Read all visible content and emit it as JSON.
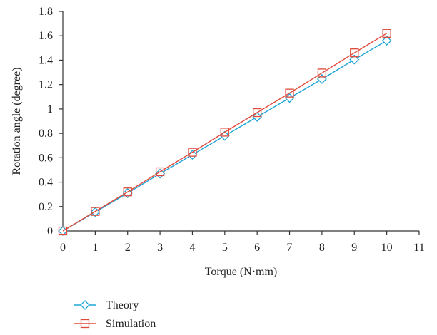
{
  "chart_data": {
    "type": "line",
    "xlabel": "Torque (N·mm)",
    "ylabel": "Rotation angle (degree)",
    "xlim": [
      0,
      11
    ],
    "ylim": [
      0,
      1.8
    ],
    "x_ticks": [
      "0",
      "1",
      "2",
      "3",
      "4",
      "5",
      "6",
      "7",
      "8",
      "9",
      "10",
      "11"
    ],
    "y_ticks": [
      "0",
      "0.2",
      "0.4",
      "0.6",
      "0.8",
      "1",
      "1.2",
      "1.4",
      "1.6",
      "1.8"
    ],
    "x_tick_values": [
      0,
      1,
      2,
      3,
      4,
      5,
      6,
      7,
      8,
      9,
      10,
      11
    ],
    "y_tick_values": [
      0,
      0.2,
      0.4,
      0.6,
      0.8,
      1.0,
      1.2,
      1.4,
      1.6,
      1.8
    ],
    "grid": false,
    "legend_position": "bottom-left",
    "x": [
      0,
      1,
      2,
      3,
      4,
      5,
      6,
      7,
      8,
      9,
      10
    ],
    "series": [
      {
        "name": "Theory",
        "color": "#1ea5d6",
        "marker": "diamond",
        "values": [
          0,
          0.155,
          0.31,
          0.47,
          0.625,
          0.78,
          0.935,
          1.09,
          1.245,
          1.405,
          1.56
        ]
      },
      {
        "name": "Simulation",
        "color": "#e0493a",
        "marker": "square",
        "values": [
          0,
          0.16,
          0.32,
          0.485,
          0.645,
          0.81,
          0.97,
          1.13,
          1.295,
          1.46,
          1.62
        ]
      }
    ]
  }
}
